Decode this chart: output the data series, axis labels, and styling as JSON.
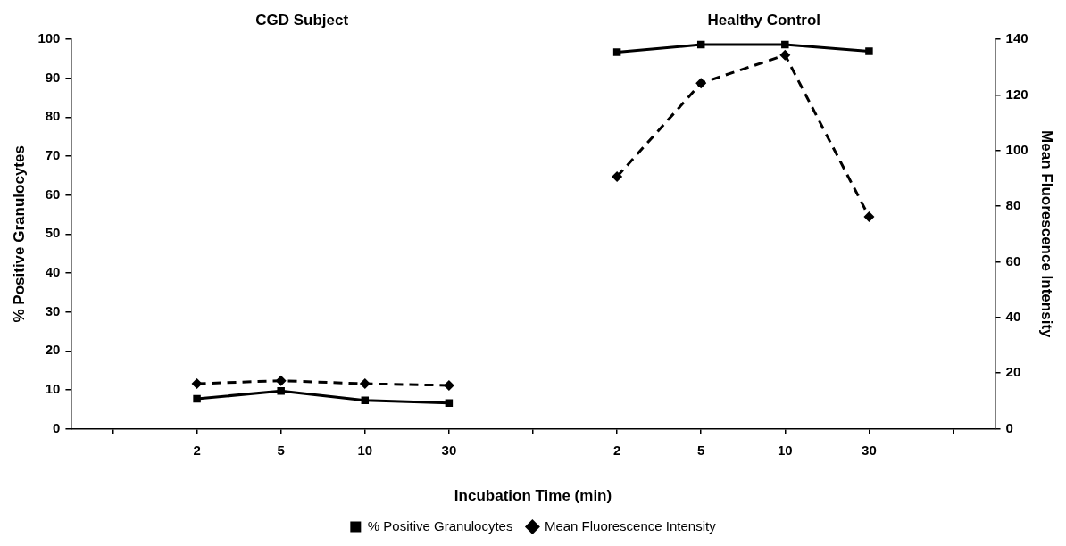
{
  "chart_data": {
    "type": "line",
    "categories": [
      null,
      "2",
      "5",
      "10",
      "30",
      null,
      "2",
      "5",
      "10",
      "30",
      null
    ],
    "series": [
      {
        "name": "% Positive Granulocytes",
        "color": "#000000",
        "marker": "square",
        "line_style": "solid",
        "values": [
          null,
          7.7,
          9.7,
          7.3,
          6.6,
          null,
          96.7,
          98.6,
          98.6,
          96.9,
          null
        ]
      },
      {
        "name": "Mean Fluorescence Intensity",
        "color": "#000000",
        "marker": "diamond",
        "line_style": "dashed",
        "axis": "y2",
        "values": [
          null,
          16.2,
          17.3,
          16.2,
          15.6,
          null,
          90.6,
          124.2,
          134.3,
          76.2,
          null
        ]
      }
    ],
    "xlabel": "Incubation Time (min)",
    "ylabel": "% Positive Granulocytes",
    "y2label": "Mean Fluorescence Intensity",
    "ylim": [
      0,
      100
    ],
    "yticks": [
      0,
      10,
      20,
      30,
      40,
      50,
      60,
      70,
      80,
      90,
      100
    ],
    "y2lim": [
      0,
      140
    ],
    "y2ticks": [
      0,
      20,
      40,
      60,
      80,
      100,
      120,
      140
    ],
    "annotations": [
      "CGD Subject",
      "Healthy Control"
    ],
    "legend": "bottom",
    "grid": false
  }
}
